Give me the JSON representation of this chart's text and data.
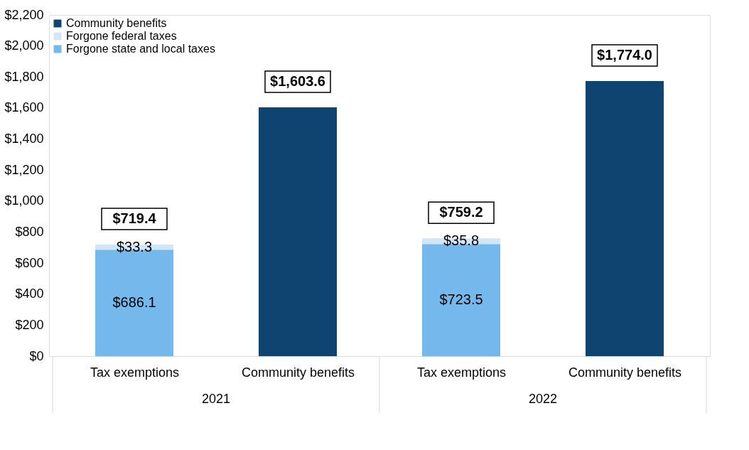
{
  "chart_data": {
    "type": "bar",
    "stacked": true,
    "categories": [
      "Tax exemptions",
      "Community benefits",
      "Tax exemptions",
      "Community benefits"
    ],
    "series": [
      {
        "name": "Forgone state and local taxes",
        "color": "#74b8ec",
        "values": [
          686.1,
          null,
          723.5,
          null
        ],
        "value_labels": [
          "$686.1",
          null,
          "$723.5",
          null
        ]
      },
      {
        "name": "Forgone federal taxes",
        "color": "#d2e6f7",
        "values": [
          33.3,
          null,
          35.8,
          null
        ],
        "value_labels": [
          "$33.3",
          null,
          "$35.8",
          null
        ]
      },
      {
        "name": "Community benefits",
        "color": "#0e446f",
        "values": [
          null,
          1603.6,
          null,
          1774.0
        ]
      }
    ],
    "totals": [
      "$719.4",
      "$1,603.6",
      "$759.2",
      "$1,774.0"
    ],
    "annotations": [
      "2021",
      "2022"
    ],
    "ylim": [
      0,
      2200
    ],
    "yticks": [
      {
        "value": 0,
        "label": "$0"
      },
      {
        "value": 200,
        "label": "$200"
      },
      {
        "value": 400,
        "label": "$400"
      },
      {
        "value": 600,
        "label": "$600"
      },
      {
        "value": 800,
        "label": "$800"
      },
      {
        "value": 1000,
        "label": "$1,000"
      },
      {
        "value": 1200,
        "label": "$1,200"
      },
      {
        "value": 1400,
        "label": "$1,400"
      },
      {
        "value": 1600,
        "label": "$1,600"
      },
      {
        "value": 1800,
        "label": "$1,800"
      },
      {
        "value": 2000,
        "label": "$2,000"
      },
      {
        "value": 2200,
        "label": "$2,200"
      }
    ],
    "grid": false,
    "legend": "top left"
  }
}
